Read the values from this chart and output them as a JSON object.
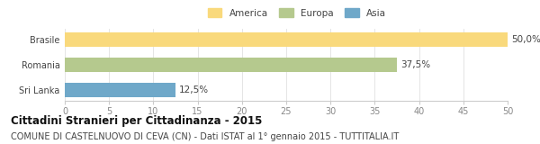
{
  "categories": [
    "Sri Lanka",
    "Romania",
    "Brasile"
  ],
  "values": [
    12.5,
    37.5,
    50.0
  ],
  "bar_colors": [
    "#6fa8c9",
    "#b5c98e",
    "#f9d97c"
  ],
  "labels": [
    "12,5%",
    "37,5%",
    "50,0%"
  ],
  "legend_labels": [
    "America",
    "Europa",
    "Asia"
  ],
  "legend_colors": [
    "#f9d97c",
    "#b5c98e",
    "#6fa8c9"
  ],
  "xlim": [
    0,
    50
  ],
  "xticks": [
    0,
    5,
    10,
    15,
    20,
    25,
    30,
    35,
    40,
    45,
    50
  ],
  "title": "Cittadini Stranieri per Cittadinanza - 2015",
  "subtitle": "COMUNE DI CASTELNUOVO DI CEVA (CN) - Dati ISTAT al 1° gennaio 2015 - TUTTITALIA.IT",
  "title_fontsize": 8.5,
  "subtitle_fontsize": 7,
  "label_fontsize": 7.5,
  "tick_fontsize": 7,
  "background_color": "#ffffff"
}
